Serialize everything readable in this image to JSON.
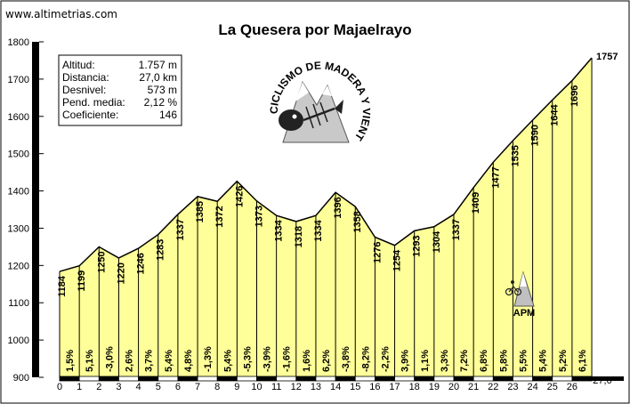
{
  "site": "www.altimetrias.com",
  "chart_data": {
    "type": "area",
    "title": "La Quesera por Majaelrayo",
    "x": [
      0,
      1,
      2,
      3,
      4,
      5,
      6,
      7,
      8,
      9,
      10,
      11,
      12,
      13,
      14,
      15,
      16,
      17,
      18,
      19,
      20,
      21,
      22,
      23,
      24,
      25,
      26,
      27
    ],
    "altitudes": [
      1184,
      1199,
      1250,
      1220,
      1246,
      1283,
      1337,
      1385,
      1372,
      1426,
      1373,
      1334,
      1318,
      1334,
      1396,
      1358,
      1276,
      1254,
      1293,
      1304,
      1337,
      1409,
      1477,
      1535,
      1590,
      1644,
      1696,
      1757
    ],
    "altitude_labels": [
      "1184",
      "1199",
      "1250",
      "1220",
      "1246",
      "1283",
      "1337",
      "1385",
      "1372",
      "1426",
      "1373",
      "1334",
      "1318",
      "1334",
      "1396",
      "1358",
      "1276",
      "1254",
      "1293",
      "1304",
      "1337",
      "1409",
      "1477",
      "1535",
      "1590",
      "1644",
      "1696",
      "1757"
    ],
    "gradients": [
      "1,5%",
      "5,1%",
      "-3,0%",
      "2,6%",
      "3,7%",
      "5,4%",
      "4,8%",
      "-1,3%",
      "5,4%",
      "-5,3%",
      "-3,9%",
      "-1,6%",
      "1,6%",
      "6,2%",
      "-3,8%",
      "-8,2%",
      "-2,2%",
      "3,9%",
      "1,1%",
      "3,3%",
      "7,2%",
      "6,8%",
      "5,8%",
      "5,5%",
      "5,4%",
      "5,2%",
      "6,1%"
    ],
    "x_tick_labels": [
      "0",
      "1",
      "2",
      "3",
      "4",
      "5",
      "6",
      "7",
      "8",
      "9",
      "10",
      "11",
      "12",
      "13",
      "14",
      "15",
      "16",
      "17",
      "18",
      "19",
      "20",
      "21",
      "22",
      "23",
      "24",
      "25",
      "26"
    ],
    "y_tick_labels": [
      "900",
      "1000",
      "1100",
      "1200",
      "1300",
      "1400",
      "1500",
      "1600",
      "1700",
      "1800"
    ],
    "ylim": [
      900,
      1800
    ],
    "xlim": [
      0,
      27
    ],
    "end_distance_label": "27,0",
    "fill_color": "#ffff99",
    "line_color": "#000000"
  },
  "stats": [
    {
      "label": "Altitud:",
      "value": "1.757 m"
    },
    {
      "label": "Distancia:",
      "value": "27,0 km"
    },
    {
      "label": "Desnivel:",
      "value": "573 m"
    },
    {
      "label": "Pend. media:",
      "value": "2,12 %"
    },
    {
      "label": "Coeficiente:",
      "value": "146"
    }
  ],
  "logo": {
    "text": "CICLISMO DE MADERA Y VIENTO",
    "icon": "cyclist-mountain-fish-logo"
  },
  "apm": {
    "label": "APM",
    "icon": "cyclist-mountain-icon"
  }
}
